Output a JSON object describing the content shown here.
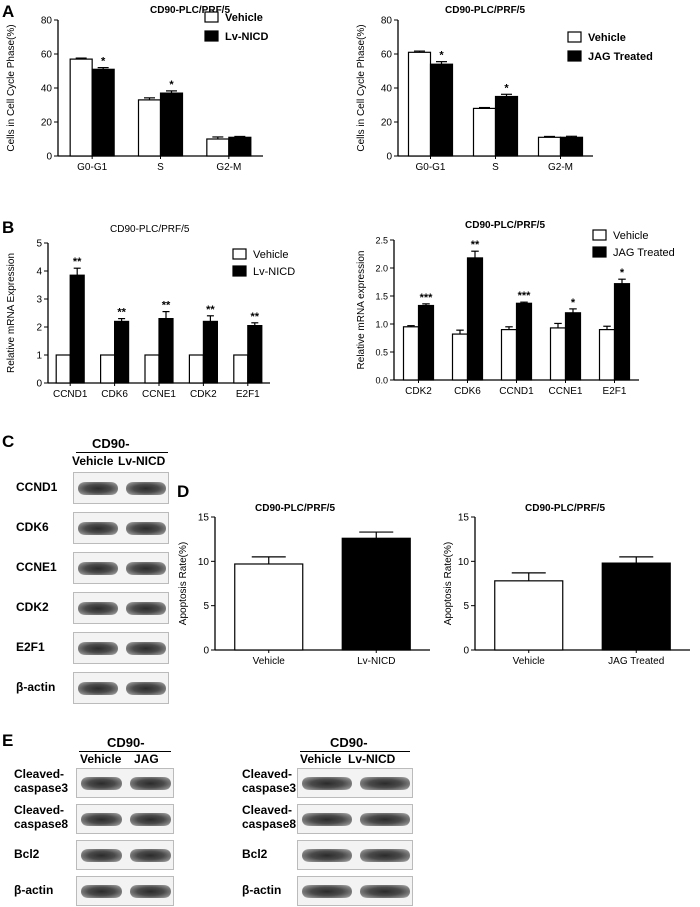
{
  "panel_letters": {
    "a": "A",
    "b": "B",
    "c": "C",
    "d": "D",
    "e": "E"
  },
  "chart_data": [
    {
      "id": "A1",
      "type": "bar",
      "title": "CD90-PLC/PRF/5",
      "ylabel": "Cells in Cell Cycle Phase(%)",
      "xlabel": "",
      "ylim": [
        0,
        80
      ],
      "yticks": [
        0,
        20,
        40,
        60,
        80
      ],
      "categories": [
        "G0-G1",
        "S",
        "G2-M"
      ],
      "series": [
        {
          "name": "Vehicle",
          "values": [
            57,
            33,
            10
          ],
          "errors": [
            0.6,
            1.2,
            1.2
          ],
          "color": "#ffffff"
        },
        {
          "name": "Lv-NICD",
          "values": [
            51,
            37,
            11
          ],
          "errors": [
            1.0,
            1.3,
            0.5
          ],
          "color": "#000000"
        }
      ],
      "significance": [
        [
          "",
          "*"
        ],
        [
          "",
          "*"
        ],
        [
          "",
          ""
        ]
      ],
      "legend_position": "top-right"
    },
    {
      "id": "A2",
      "type": "bar",
      "title": "CD90-PLC/PRF/5",
      "ylabel": "Cells in Cell Cycle Phase(%)",
      "xlabel": "",
      "ylim": [
        0,
        80
      ],
      "yticks": [
        0,
        20,
        40,
        60,
        80
      ],
      "categories": [
        "G0-G1",
        "S",
        "G2-M"
      ],
      "series": [
        {
          "name": "Vehicle",
          "values": [
            61,
            28,
            11
          ],
          "errors": [
            0.7,
            0.5,
            0.5
          ],
          "color": "#ffffff"
        },
        {
          "name": "JAG Treated",
          "values": [
            54,
            35,
            11
          ],
          "errors": [
            1.5,
            1.3,
            0.6
          ],
          "color": "#000000"
        }
      ],
      "significance": [
        [
          "",
          "*"
        ],
        [
          "",
          "*"
        ],
        [
          "",
          ""
        ]
      ],
      "legend_position": "top-right"
    },
    {
      "id": "B1",
      "type": "bar",
      "title": "CD90-PLC/PRF/5",
      "ylabel": "Relative mRNA Expression",
      "xlabel": "",
      "ylim": [
        0,
        5
      ],
      "yticks": [
        0,
        1,
        2,
        3,
        4,
        5
      ],
      "categories": [
        "CCND1",
        "CDK6",
        "CCNE1",
        "CDK2",
        "E2F1"
      ],
      "series": [
        {
          "name": "Vehicle",
          "values": [
            1,
            1,
            1,
            1,
            1
          ],
          "errors": [
            0,
            0,
            0,
            0,
            0
          ],
          "color": "#ffffff"
        },
        {
          "name": "Lv-NICD",
          "values": [
            3.85,
            2.2,
            2.3,
            2.2,
            2.05
          ],
          "errors": [
            0.25,
            0.1,
            0.25,
            0.2,
            0.1
          ],
          "color": "#000000"
        }
      ],
      "significance": [
        [
          "",
          "**"
        ],
        [
          "",
          "**"
        ],
        [
          "",
          "**"
        ],
        [
          "",
          "**"
        ],
        [
          "",
          "**"
        ]
      ],
      "legend_position": "top-right"
    },
    {
      "id": "B2",
      "type": "bar",
      "title": "CD90-PLC/PRF/5",
      "ylabel": "Relative mRNA expression",
      "xlabel": "",
      "ylim": [
        0,
        2.5
      ],
      "yticks": [
        0.0,
        0.5,
        1.0,
        1.5,
        2.0,
        2.5
      ],
      "categories": [
        "CDK2",
        "CDK6",
        "CCND1",
        "CCNE1",
        "E2F1"
      ],
      "series": [
        {
          "name": "Vehicle",
          "values": [
            0.95,
            0.82,
            0.9,
            0.93,
            0.9
          ],
          "errors": [
            0.02,
            0.07,
            0.05,
            0.08,
            0.06
          ],
          "color": "#ffffff"
        },
        {
          "name": "JAG Treated",
          "values": [
            1.33,
            2.18,
            1.37,
            1.2,
            1.72
          ],
          "errors": [
            0.03,
            0.12,
            0.02,
            0.07,
            0.08
          ],
          "color": "#000000"
        }
      ],
      "significance": [
        [
          "",
          "***"
        ],
        [
          "",
          "**"
        ],
        [
          "",
          "***"
        ],
        [
          "",
          "*"
        ],
        [
          "",
          "*"
        ]
      ],
      "legend_position": "top-right"
    },
    {
      "id": "D1",
      "type": "bar",
      "title": "CD90-PLC/PRF/5",
      "ylabel": "Apoptosis Rate(%)",
      "xlabel": "",
      "ylim": [
        0,
        15
      ],
      "yticks": [
        0,
        5,
        10,
        15
      ],
      "categories": [
        "Vehicle",
        "Lv-NICD"
      ],
      "series": [
        {
          "name": "",
          "values": [
            9.7,
            12.6
          ],
          "errors": [
            0.8,
            0.7
          ],
          "colors": [
            "#ffffff",
            "#000000"
          ]
        }
      ]
    },
    {
      "id": "D2",
      "type": "bar",
      "title": "CD90-PLC/PRF/5",
      "ylabel": "Apoptosis Rate(%)",
      "xlabel": "",
      "ylim": [
        0,
        15
      ],
      "yticks": [
        0,
        5,
        10,
        15
      ],
      "categories": [
        "Vehicle",
        "JAG Treated"
      ],
      "series": [
        {
          "name": "",
          "values": [
            7.8,
            9.8
          ],
          "errors": [
            0.9,
            0.7
          ],
          "colors": [
            "#ffffff",
            "#000000"
          ]
        }
      ]
    }
  ],
  "blots": {
    "C": {
      "header": "CD90-",
      "lanes": [
        "Vehicle",
        "Lv-NICD"
      ],
      "rows": [
        "CCND1",
        "CDK6",
        "CCNE1",
        "CDK2",
        "E2F1",
        "β-actin"
      ]
    },
    "E_left": {
      "header": "CD90-",
      "lanes": [
        "Vehicle",
        "JAG"
      ],
      "rows": [
        "Cleaved-caspase3",
        "Cleaved-caspase8",
        "Bcl2",
        "β-actin"
      ]
    },
    "E_right": {
      "header": "CD90-",
      "lanes": [
        "Vehicle",
        "Lv-NICD"
      ],
      "rows": [
        "Cleaved-caspase3",
        "Cleaved-caspase8",
        "Bcl2",
        "β-actin"
      ]
    }
  }
}
